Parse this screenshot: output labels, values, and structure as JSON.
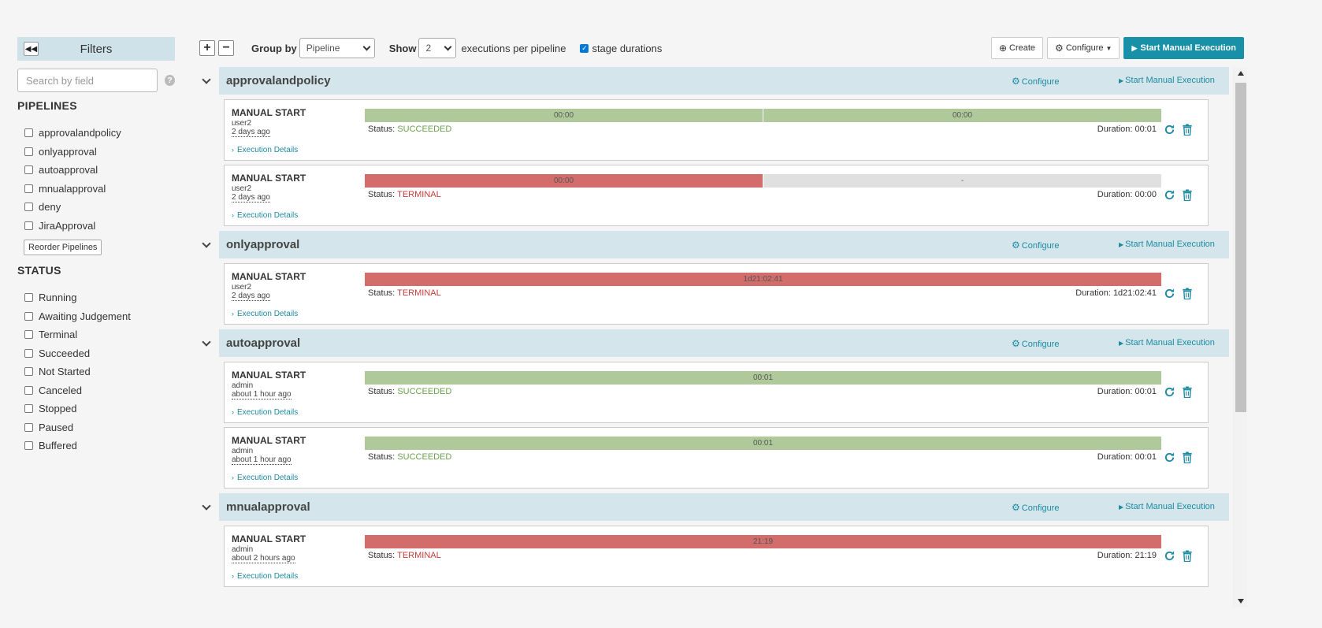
{
  "sidebar": {
    "title": "Filters",
    "search_placeholder": "Search by field",
    "pipelines_title": "PIPELINES",
    "pipelines": [
      {
        "label": "approvalandpolicy"
      },
      {
        "label": "onlyapproval"
      },
      {
        "label": "autoapproval"
      },
      {
        "label": "mnualapproval"
      },
      {
        "label": "deny"
      },
      {
        "label": "JiraApproval"
      }
    ],
    "reorder_label": "Reorder Pipelines",
    "status_title": "STATUS",
    "statuses": [
      {
        "label": "Running"
      },
      {
        "label": "Awaiting Judgement"
      },
      {
        "label": "Terminal"
      },
      {
        "label": "Succeeded"
      },
      {
        "label": "Not Started"
      },
      {
        "label": "Canceled"
      },
      {
        "label": "Stopped"
      },
      {
        "label": "Paused"
      },
      {
        "label": "Buffered"
      }
    ]
  },
  "toolbar": {
    "group_by_label": "Group by",
    "group_by_value": "Pipeline",
    "show_label": "Show",
    "show_value": "2",
    "executions_label": "executions per pipeline",
    "stage_durations_label": "stage durations",
    "stage_durations_checked": true,
    "create_label": "Create",
    "configure_label": "Configure",
    "start_label": "Start Manual Execution"
  },
  "group_actions": {
    "configure": "Configure",
    "start": "Start Manual Execution"
  },
  "groups": [
    {
      "name": "approvalandpolicy",
      "executions": [
        {
          "trigger": "MANUAL START",
          "user": "user2",
          "time": "2 days ago",
          "stages": [
            "00:00",
            "00:00"
          ],
          "status": "SUCCEEDED",
          "duration": "Duration: 00:01",
          "details": "Execution Details"
        },
        {
          "trigger": "MANUAL START",
          "user": "user2",
          "time": "2 days ago",
          "stages": [
            "00:00",
            "-"
          ],
          "status": "TERMINAL",
          "duration": "Duration: 00:00",
          "details": "Execution Details"
        }
      ]
    },
    {
      "name": "onlyapproval",
      "executions": [
        {
          "trigger": "MANUAL START",
          "user": "user2",
          "time": "2 days ago",
          "stages": [
            "1d21:02:41"
          ],
          "status": "TERMINAL",
          "duration": "Duration: 1d21:02:41",
          "details": "Execution Details"
        }
      ]
    },
    {
      "name": "autoapproval",
      "executions": [
        {
          "trigger": "MANUAL START",
          "user": "admin",
          "time": "about 1 hour ago",
          "stages": [
            "00:01"
          ],
          "status": "SUCCEEDED",
          "duration": "Duration: 00:01",
          "details": "Execution Details"
        },
        {
          "trigger": "MANUAL START",
          "user": "admin",
          "time": "about 1 hour ago",
          "stages": [
            "00:01"
          ],
          "status": "SUCCEEDED",
          "duration": "Duration: 00:01",
          "details": "Execution Details"
        }
      ]
    },
    {
      "name": "mnualapproval",
      "executions": [
        {
          "trigger": "MANUAL START",
          "user": "admin",
          "time": "about 2 hours ago",
          "stages": [
            "21:19"
          ],
          "status": "TERMINAL",
          "duration": "Duration: 21:19",
          "details": "Execution Details"
        }
      ]
    }
  ],
  "status_label": "Status:",
  "colors": {
    "accent": "#1890a8",
    "succeeded": "#b0c99a",
    "terminal": "#d26d6b",
    "not_started": "#e0e0e0",
    "group_header": "#d4e6ec"
  },
  "icons": {
    "collapse": "double-chevron-left-icon",
    "help": "question-circle-icon",
    "rerun": "redo-icon",
    "delete": "trash-icon",
    "configure": "cog-icon",
    "start": "play-icon",
    "create": "plus-circle-icon"
  }
}
